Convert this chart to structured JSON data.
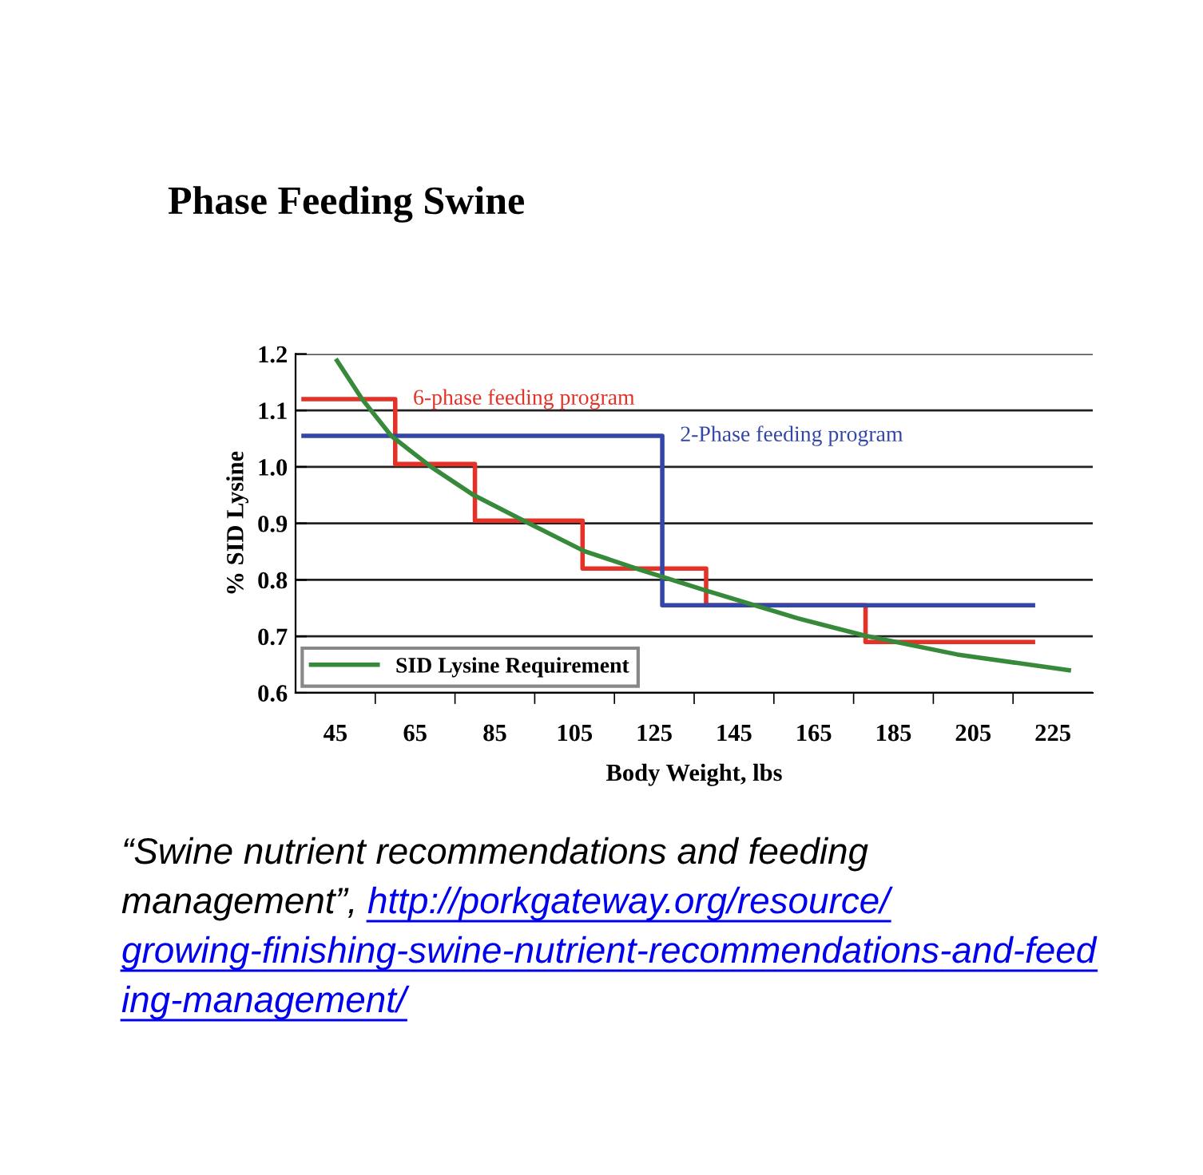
{
  "chart_data": {
    "type": "step",
    "title": "Phase Feeding Swine",
    "xlabel": "Body Weight, lbs",
    "ylabel": "% SID Lysine",
    "series": [
      {
        "name": "6-phase feeding program",
        "color": "#e53228",
        "x": [
          37,
          60,
          80,
          107,
          138,
          178,
          220
        ],
        "values": [
          1.12,
          1.005,
          0.905,
          0.82,
          0.755,
          0.69,
          0.69
        ]
      },
      {
        "name": "2-Phase feeding program",
        "color": "#3447a8",
        "x": [
          37,
          127,
          220
        ],
        "values": [
          1.055,
          0.755,
          0.755
        ]
      },
      {
        "name": "SID Lysine Requirement",
        "type": "line",
        "color": "#378a3a",
        "x": [
          45.4,
          51.7,
          59,
          69,
          79.7,
          93,
          107.4,
          121,
          138,
          161,
          178,
          201,
          229
        ],
        "values": [
          1.188,
          1.12,
          1.055,
          1.0,
          0.95,
          0.902,
          0.851,
          0.819,
          0.781,
          0.732,
          0.701,
          0.668,
          0.64
        ]
      }
    ],
    "xlim": [
      35,
      235
    ],
    "xticks": [
      {
        "value": 45,
        "label": "45"
      },
      {
        "value": 55,
        "label": null
      },
      {
        "value": 65,
        "label": "65"
      },
      {
        "value": 75,
        "label": null
      },
      {
        "value": 85,
        "label": "85"
      },
      {
        "value": 95,
        "label": null
      },
      {
        "value": 105,
        "label": "105"
      },
      {
        "value": 115,
        "label": null
      },
      {
        "value": 125,
        "label": "125"
      },
      {
        "value": 135,
        "label": null
      },
      {
        "value": 145,
        "label": "145"
      },
      {
        "value": 155,
        "label": null
      },
      {
        "value": 165,
        "label": "165"
      },
      {
        "value": 175,
        "label": null
      },
      {
        "value": 185,
        "label": "185"
      },
      {
        "value": 195,
        "label": null
      },
      {
        "value": 205,
        "label": "205"
      },
      {
        "value": 215,
        "label": null
      },
      {
        "value": 225,
        "label": "225"
      }
    ],
    "ylim": [
      0.6,
      1.2
    ],
    "yticks": [
      {
        "value": 0.6,
        "label": "0.6"
      },
      {
        "value": 0.7,
        "label": "0.7"
      },
      {
        "value": 0.8,
        "label": "0.8"
      },
      {
        "value": 0.9,
        "label": "0.9"
      },
      {
        "value": 1.0,
        "label": "1.0"
      },
      {
        "value": 1.1,
        "label": "1.1"
      },
      {
        "value": 1.2,
        "label": "1.2"
      }
    ],
    "grid": "y",
    "legend": "bottom left",
    "line_style": "solid",
    "annotations": [
      "“Swine nutrient recommendations and feeding management”, ",
      "http://porkgateway.org/resource/growing-finishing-swine-nutrient-recommendations-and-feeding-management/"
    ]
  }
}
